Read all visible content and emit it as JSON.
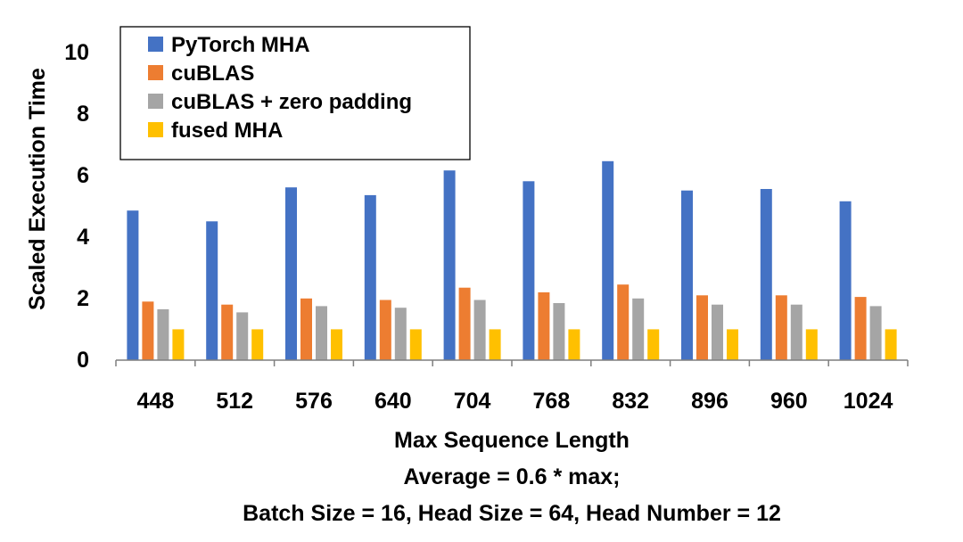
{
  "chart_data": {
    "type": "bar",
    "categories": [
      "448",
      "512",
      "576",
      "640",
      "704",
      "768",
      "832",
      "896",
      "960",
      "1024"
    ],
    "series": [
      {
        "name": "PyTorch MHA",
        "color": "#4472C4",
        "values": [
          4.85,
          4.5,
          5.6,
          5.35,
          6.15,
          5.8,
          6.45,
          5.5,
          5.55,
          5.15
        ]
      },
      {
        "name": "cuBLAS",
        "color": "#ED7D31",
        "values": [
          1.9,
          1.8,
          2.0,
          1.95,
          2.35,
          2.2,
          2.45,
          2.1,
          2.1,
          2.05
        ]
      },
      {
        "name": "cuBLAS + zero padding",
        "color": "#A5A5A5",
        "values": [
          1.65,
          1.55,
          1.75,
          1.7,
          1.95,
          1.85,
          2.0,
          1.8,
          1.8,
          1.75
        ]
      },
      {
        "name": "fused MHA",
        "color": "#FFC000",
        "values": [
          1.0,
          1.0,
          1.0,
          1.0,
          1.0,
          1.0,
          1.0,
          1.0,
          1.0,
          1.0
        ]
      }
    ],
    "ylabel": "Scaled Execution Time",
    "xlabel": "Max Sequence Length",
    "notes": [
      "Average = 0.6 * max;",
      "Batch Size = 16, Head Size = 64, Head Number = 12"
    ],
    "ylim": [
      0,
      10
    ],
    "yticks": [
      "0",
      "2",
      "4",
      "6",
      "8",
      "10"
    ],
    "grid": false,
    "legend_position": "top-left"
  }
}
